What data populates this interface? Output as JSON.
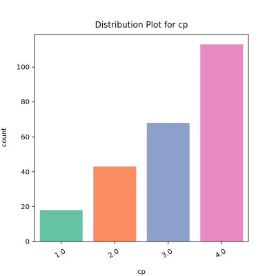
{
  "chart_data": {
    "type": "bar",
    "title": "Distribution Plot for cp",
    "xlabel": "cp",
    "ylabel": "count",
    "categories": [
      "1.0",
      "2.0",
      "3.0",
      "4.0"
    ],
    "values": [
      18,
      43,
      68,
      113
    ],
    "colors": [
      "#66c2a5",
      "#fc8d62",
      "#8da0cb",
      "#e78ac3"
    ],
    "ylim": [
      0,
      118.65
    ],
    "yticks": [
      0,
      20,
      40,
      60,
      80,
      100
    ],
    "grid": false,
    "legend": "none"
  }
}
